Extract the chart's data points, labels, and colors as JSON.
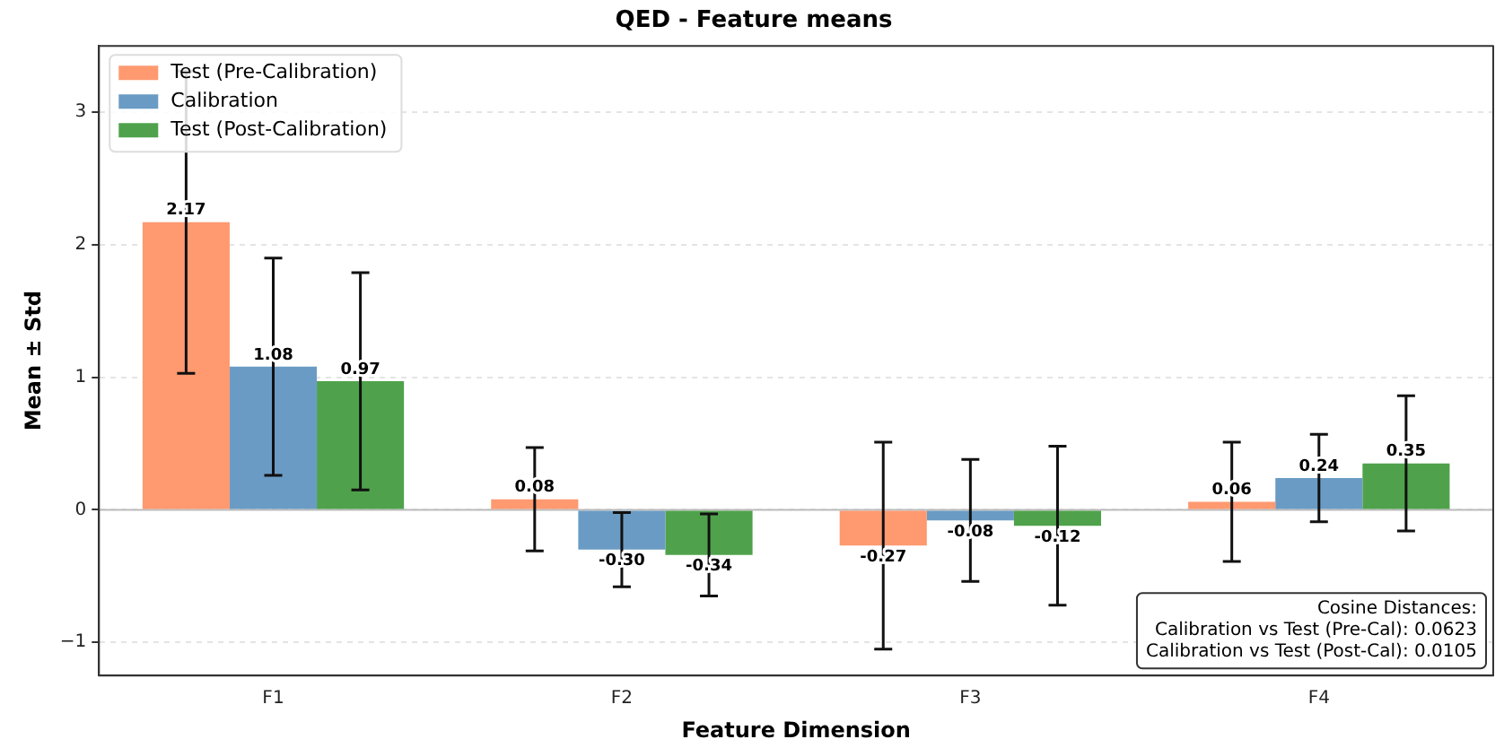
{
  "chart_data": {
    "type": "bar",
    "title": "QED - Feature means",
    "xlabel": "Feature Dimension",
    "ylabel": "Mean ± Std",
    "categories": [
      "F1",
      "F2",
      "F3",
      "F4"
    ],
    "series": [
      {
        "name": "Test (Pre-Calibration)",
        "color": "#fe9970",
        "values": [
          2.17,
          0.08,
          -0.27,
          0.06
        ],
        "errors": [
          1.14,
          0.39,
          0.78,
          0.45
        ],
        "value_labels": [
          "2.17",
          "0.08",
          "-0.27",
          "0.06"
        ]
      },
      {
        "name": "Calibration",
        "color": "#6a9bc4",
        "values": [
          1.08,
          -0.3,
          -0.08,
          0.24
        ],
        "errors": [
          0.82,
          0.28,
          0.46,
          0.33
        ],
        "value_labels": [
          "1.08",
          "-0.30",
          "-0.08",
          "0.24"
        ]
      },
      {
        "name": "Test (Post-Calibration)",
        "color": "#4fa24b",
        "values": [
          0.97,
          -0.34,
          -0.12,
          0.35
        ],
        "errors": [
          0.82,
          0.31,
          0.6,
          0.51
        ],
        "value_labels": [
          "0.97",
          "-0.34",
          "-0.12",
          "0.35"
        ]
      }
    ],
    "ylim": [
      -1.25,
      3.5
    ],
    "yticks": [
      -1,
      0,
      1,
      2,
      3
    ],
    "grid": "y",
    "legend": "top left",
    "ref_lines": [
      {
        "axis": "y",
        "value": 0,
        "color": "#bbbbbb"
      }
    ],
    "annotations": [
      "Cosine Distances:\nCalibration vs Test (Pre-Cal): 0.0623\nCalibration vs Test (Post-Cal): 0.0105"
    ]
  }
}
